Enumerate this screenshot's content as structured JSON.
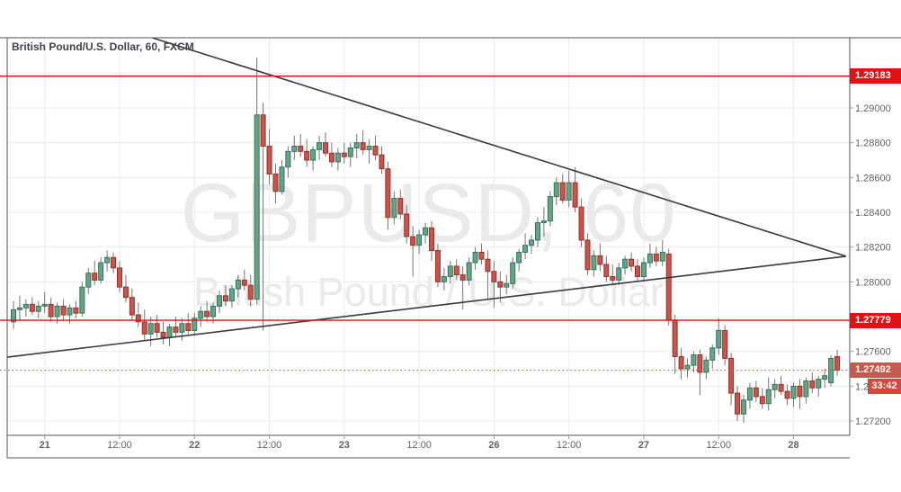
{
  "header": {
    "title": "British Pound/U.S. Dollar, 60, FXCM"
  },
  "watermark": {
    "line1": "GBPUSD, 60",
    "line2": "British Pound / U.S. Dollar"
  },
  "countdown": {
    "label": "33:42"
  },
  "price_lines": [
    {
      "label": "1.29183",
      "price": 1.29183,
      "style": "solid",
      "role": "horizontal-line"
    },
    {
      "label": "1.27779",
      "price": 1.27779,
      "style": "solid",
      "role": "horizontal-line"
    },
    {
      "label": "1.27492",
      "price": 1.27492,
      "style": "dotted",
      "role": "current-price"
    }
  ],
  "trendlines": [
    {
      "name": "trendline-descending",
      "from": {
        "index": 22.3,
        "price": 1.29403
      },
      "to": {
        "index": 133.4,
        "price": 1.28147
      }
    },
    {
      "name": "trendline-ascending",
      "from": {
        "index": -1.0,
        "price": 1.27567
      },
      "to": {
        "index": 133.4,
        "price": 1.28147
      }
    }
  ],
  "price_axis": {
    "ticks": [
      {
        "label": "1.29200",
        "price": 1.292
      },
      {
        "label": "1.29000",
        "price": 1.29
      },
      {
        "label": "1.28800",
        "price": 1.288
      },
      {
        "label": "1.28600",
        "price": 1.286
      },
      {
        "label": "1.28400",
        "price": 1.284
      },
      {
        "label": "1.28200",
        "price": 1.282
      },
      {
        "label": "1.28000",
        "price": 1.28
      },
      {
        "label": "1.27800",
        "price": 1.278
      },
      {
        "label": "1.27600",
        "price": 1.276
      },
      {
        "label": "1.27400",
        "price": 1.274
      },
      {
        "label": "1.27200",
        "price": 1.272
      }
    ]
  },
  "time_axis": {
    "ticks": [
      {
        "label": "21",
        "index": 5,
        "major": true
      },
      {
        "label": "12:00",
        "index": 17,
        "major": false
      },
      {
        "label": "22",
        "index": 29,
        "major": true
      },
      {
        "label": "12:00",
        "index": 41,
        "major": false
      },
      {
        "label": "23",
        "index": 53,
        "major": true
      },
      {
        "label": "12:00",
        "index": 65,
        "major": false
      },
      {
        "label": "26",
        "index": 77,
        "major": true
      },
      {
        "label": "12:00",
        "index": 89,
        "major": false
      },
      {
        "label": "27",
        "index": 101,
        "major": true
      },
      {
        "label": "12:00",
        "index": 113,
        "major": false
      },
      {
        "label": "28",
        "index": 125,
        "major": true
      }
    ]
  },
  "colors": {
    "background": "#ffffff",
    "grid": "#ececec",
    "frame": "#50535a",
    "axis_text": "#5f6266",
    "up": "#67a385",
    "up_border": "#35725e",
    "down": "#c4564e",
    "down_border": "#9b2f28",
    "wick": "#757575",
    "trendline": "#3a3a3a",
    "alert_line": "#e01212",
    "current_line": "#c65a4e",
    "current_badge": "#c65a4e",
    "timer_badge": "#d2493d",
    "watermark": "#e9eaec"
  },
  "chart_data": {
    "type": "candlestick",
    "symbol": "GBPUSD",
    "interval": "60",
    "exchange": "FXCM",
    "title": "British Pound/U.S. Dollar, 60, FXCM",
    "ylim": [
      1.2712,
      1.294
    ],
    "x_tick_labels": [
      "21",
      "12:00",
      "22",
      "12:00",
      "23",
      "12:00",
      "26",
      "12:00",
      "27",
      "12:00",
      "28"
    ],
    "last_price": 1.27492,
    "candles": [
      [
        1.2777,
        1.2789,
        1.2773,
        1.2784
      ],
      [
        1.2784,
        1.2792,
        1.2778,
        1.2785
      ],
      [
        1.2785,
        1.279,
        1.278,
        1.2787
      ],
      [
        1.2787,
        1.2791,
        1.2781,
        1.2783
      ],
      [
        1.2783,
        1.2789,
        1.2779,
        1.2786
      ],
      [
        1.2786,
        1.2794,
        1.2782,
        1.2787
      ],
      [
        1.2787,
        1.2791,
        1.2777,
        1.278
      ],
      [
        1.278,
        1.2788,
        1.2776,
        1.2786
      ],
      [
        1.2786,
        1.279,
        1.2778,
        1.2781
      ],
      [
        1.2781,
        1.2787,
        1.2776,
        1.2785
      ],
      [
        1.2785,
        1.2789,
        1.2779,
        1.2782
      ],
      [
        1.2782,
        1.28,
        1.278,
        1.2797
      ],
      [
        1.2797,
        1.2808,
        1.2793,
        1.2805
      ],
      [
        1.2805,
        1.2812,
        1.2798,
        1.2801
      ],
      [
        1.2801,
        1.2814,
        1.2799,
        1.2811
      ],
      [
        1.2811,
        1.2818,
        1.2806,
        1.2814
      ],
      [
        1.2814,
        1.2817,
        1.2805,
        1.2808
      ],
      [
        1.2808,
        1.2812,
        1.2794,
        1.2797
      ],
      [
        1.2797,
        1.2804,
        1.2788,
        1.2791
      ],
      [
        1.2791,
        1.2796,
        1.2778,
        1.2781
      ],
      [
        1.2781,
        1.2788,
        1.2774,
        1.2777
      ],
      [
        1.2777,
        1.2784,
        1.2766,
        1.277
      ],
      [
        1.277,
        1.278,
        1.2763,
        1.2776
      ],
      [
        1.2776,
        1.2781,
        1.2768,
        1.2771
      ],
      [
        1.2771,
        1.2777,
        1.2764,
        1.2768
      ],
      [
        1.2768,
        1.2776,
        1.2763,
        1.2774
      ],
      [
        1.2774,
        1.278,
        1.2768,
        1.2771
      ],
      [
        1.2771,
        1.2779,
        1.2766,
        1.2776
      ],
      [
        1.2776,
        1.2782,
        1.277,
        1.2772
      ],
      [
        1.2772,
        1.2782,
        1.2769,
        1.2779
      ],
      [
        1.2779,
        1.2786,
        1.2774,
        1.2783
      ],
      [
        1.2783,
        1.2789,
        1.2777,
        1.278
      ],
      [
        1.278,
        1.2788,
        1.2776,
        1.2786
      ],
      [
        1.2786,
        1.2795,
        1.2782,
        1.2792
      ],
      [
        1.2792,
        1.2798,
        1.2786,
        1.2789
      ],
      [
        1.2789,
        1.2798,
        1.2785,
        1.2796
      ],
      [
        1.2796,
        1.2804,
        1.2791,
        1.2801
      ],
      [
        1.2801,
        1.2807,
        1.2795,
        1.2798
      ],
      [
        1.2798,
        1.2804,
        1.2786,
        1.279
      ],
      [
        1.279,
        1.2929,
        1.2787,
        1.2896
      ],
      [
        1.2896,
        1.2903,
        1.2772,
        1.2878
      ],
      [
        1.2878,
        1.2888,
        1.2856,
        1.2862
      ],
      [
        1.2862,
        1.2868,
        1.2845,
        1.2852
      ],
      [
        1.2852,
        1.287,
        1.285,
        1.2866
      ],
      [
        1.2866,
        1.2878,
        1.286,
        1.2875
      ],
      [
        1.2875,
        1.2884,
        1.287,
        1.2878
      ],
      [
        1.2878,
        1.2885,
        1.2872,
        1.2875
      ],
      [
        1.2875,
        1.2882,
        1.2866,
        1.287
      ],
      [
        1.287,
        1.2878,
        1.2864,
        1.2876
      ],
      [
        1.2876,
        1.2884,
        1.287,
        1.288
      ],
      [
        1.288,
        1.2886,
        1.2872,
        1.2874
      ],
      [
        1.2874,
        1.288,
        1.2866,
        1.2869
      ],
      [
        1.2869,
        1.2877,
        1.2864,
        1.2874
      ],
      [
        1.2874,
        1.288,
        1.2868,
        1.2872
      ],
      [
        1.2872,
        1.288,
        1.2866,
        1.2877
      ],
      [
        1.2877,
        1.2885,
        1.2871,
        1.288
      ],
      [
        1.288,
        1.2887,
        1.2873,
        1.2876
      ],
      [
        1.2876,
        1.2882,
        1.2868,
        1.2878
      ],
      [
        1.2878,
        1.2884,
        1.287,
        1.2873
      ],
      [
        1.2873,
        1.2878,
        1.2862,
        1.2865
      ],
      [
        1.2865,
        1.2869,
        1.283,
        1.2837
      ],
      [
        1.2837,
        1.2852,
        1.2833,
        1.2848
      ],
      [
        1.2848,
        1.2853,
        1.2836,
        1.2839
      ],
      [
        1.2839,
        1.2844,
        1.2822,
        1.2826
      ],
      [
        1.2826,
        1.2832,
        1.2803,
        1.2821
      ],
      [
        1.2821,
        1.283,
        1.2816,
        1.2827
      ],
      [
        1.2827,
        1.2834,
        1.2822,
        1.2831
      ],
      [
        1.2831,
        1.2835,
        1.2812,
        1.2818
      ],
      [
        1.2818,
        1.2822,
        1.2797,
        1.28
      ],
      [
        1.28,
        1.2808,
        1.2795,
        1.2803
      ],
      [
        1.2803,
        1.2812,
        1.2799,
        1.2809
      ],
      [
        1.2809,
        1.2813,
        1.2801,
        1.2804
      ],
      [
        1.2804,
        1.2809,
        1.2784,
        1.2801
      ],
      [
        1.2801,
        1.2814,
        1.2798,
        1.2811
      ],
      [
        1.2811,
        1.282,
        1.2807,
        1.2817
      ],
      [
        1.2817,
        1.2822,
        1.281,
        1.2813
      ],
      [
        1.2813,
        1.2818,
        1.279,
        1.2806
      ],
      [
        1.2806,
        1.2812,
        1.2785,
        1.28
      ],
      [
        1.28,
        1.2806,
        1.2788,
        1.2797
      ],
      [
        1.2797,
        1.2804,
        1.2793,
        1.2799
      ],
      [
        1.2799,
        1.2814,
        1.2796,
        1.2811
      ],
      [
        1.2811,
        1.2819,
        1.2806,
        1.2817
      ],
      [
        1.2817,
        1.2828,
        1.2813,
        1.2821
      ],
      [
        1.2821,
        1.2827,
        1.2816,
        1.2824
      ],
      [
        1.2824,
        1.2837,
        1.282,
        1.2834
      ],
      [
        1.2834,
        1.2843,
        1.2826,
        1.2835
      ],
      [
        1.2835,
        1.2852,
        1.2832,
        1.2849
      ],
      [
        1.2849,
        1.286,
        1.2844,
        1.2857
      ],
      [
        1.2857,
        1.2862,
        1.2845,
        1.2847
      ],
      [
        1.2847,
        1.2864,
        1.2843,
        1.2857
      ],
      [
        1.2857,
        1.2866,
        1.284,
        1.2843
      ],
      [
        1.2843,
        1.2848,
        1.282,
        1.2824
      ],
      [
        1.2824,
        1.2828,
        1.2804,
        1.2807
      ],
      [
        1.2807,
        1.2818,
        1.2803,
        1.2815
      ],
      [
        1.2815,
        1.2822,
        1.2806,
        1.281
      ],
      [
        1.281,
        1.2815,
        1.28,
        1.2803
      ],
      [
        1.2803,
        1.281,
        1.2798,
        1.2801
      ],
      [
        1.2801,
        1.2811,
        1.2798,
        1.2808
      ],
      [
        1.2808,
        1.2815,
        1.2804,
        1.2813
      ],
      [
        1.2813,
        1.2817,
        1.2806,
        1.2809
      ],
      [
        1.2809,
        1.2813,
        1.28,
        1.2803
      ],
      [
        1.2803,
        1.2814,
        1.28,
        1.2811
      ],
      [
        1.2811,
        1.2822,
        1.2808,
        1.2816
      ],
      [
        1.2816,
        1.282,
        1.2809,
        1.2812
      ],
      [
        1.2812,
        1.2824,
        1.2809,
        1.2817
      ],
      [
        1.2816,
        1.2819,
        1.2775,
        1.2778
      ],
      [
        1.2778,
        1.2781,
        1.2747,
        1.2757
      ],
      [
        1.2757,
        1.2762,
        1.2744,
        1.275
      ],
      [
        1.275,
        1.2756,
        1.2745,
        1.2752
      ],
      [
        1.2752,
        1.276,
        1.2748,
        1.2758
      ],
      [
        1.2758,
        1.2761,
        1.2735,
        1.2748
      ],
      [
        1.2748,
        1.2757,
        1.2744,
        1.2755
      ],
      [
        1.2755,
        1.2764,
        1.275,
        1.2762
      ],
      [
        1.2762,
        1.2779,
        1.2758,
        1.2772
      ],
      [
        1.2772,
        1.2775,
        1.2752,
        1.2756
      ],
      [
        1.2756,
        1.2759,
        1.2729,
        1.2736
      ],
      [
        1.2736,
        1.274,
        1.272,
        1.2724
      ],
      [
        1.2724,
        1.2735,
        1.2719,
        1.2732
      ],
      [
        1.2732,
        1.2742,
        1.2727,
        1.2739
      ],
      [
        1.2739,
        1.2743,
        1.2731,
        1.2734
      ],
      [
        1.2734,
        1.2739,
        1.2727,
        1.273
      ],
      [
        1.273,
        1.2745,
        1.2726,
        1.2738
      ],
      [
        1.2738,
        1.2744,
        1.2733,
        1.2741
      ],
      [
        1.2741,
        1.2746,
        1.2735,
        1.2737
      ],
      [
        1.2737,
        1.2741,
        1.2729,
        1.2733
      ],
      [
        1.2733,
        1.2742,
        1.2728,
        1.274
      ],
      [
        1.274,
        1.2744,
        1.2727,
        1.2734
      ],
      [
        1.2734,
        1.2745,
        1.273,
        1.2743
      ],
      [
        1.2743,
        1.2748,
        1.2736,
        1.2739
      ],
      [
        1.2739,
        1.2746,
        1.2734,
        1.2744
      ],
      [
        1.2744,
        1.275,
        1.2739,
        1.2746
      ],
      [
        1.2742,
        1.2758,
        1.274,
        1.2756
      ],
      [
        1.2757,
        1.2761,
        1.2746,
        1.27492
      ]
    ]
  }
}
